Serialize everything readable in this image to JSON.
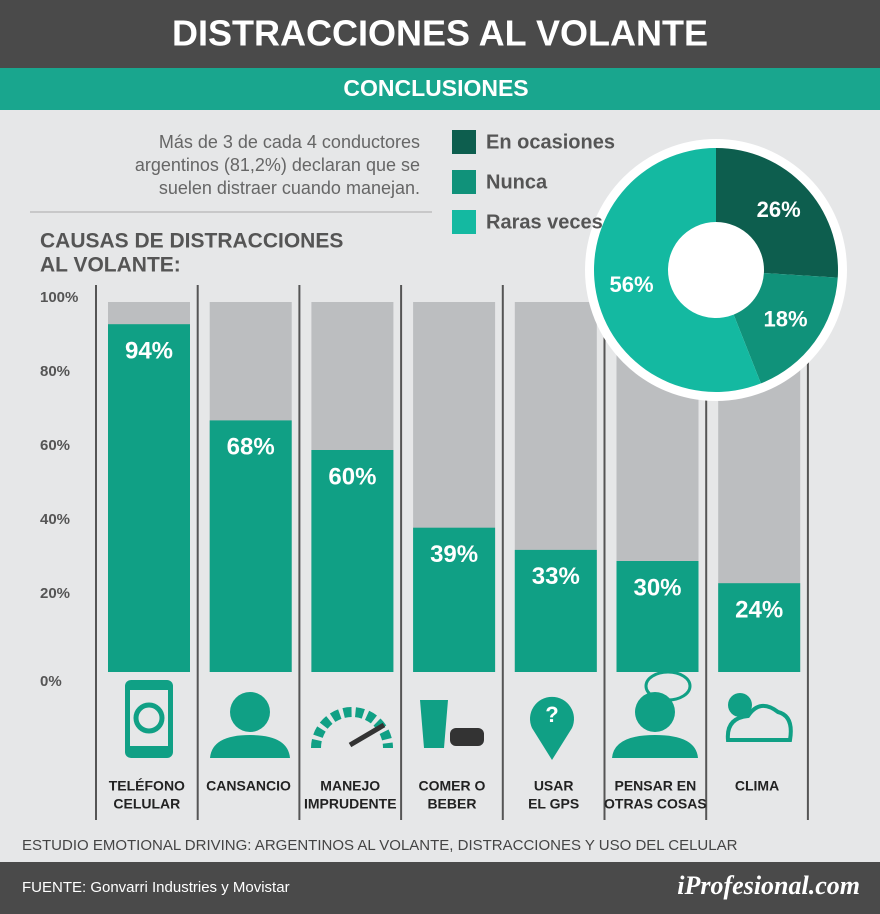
{
  "header": {
    "title": "DISTRACCIONES AL VOLANTE",
    "subtitle": "CONCLUSIONES",
    "intro": [
      "Más de 3 de cada 4 conductores",
      "argentinos (81,2%) declaran que se",
      "suelen distraer cuando manejan."
    ]
  },
  "chart_data": [
    {
      "type": "bar",
      "title": [
        "CAUSAS DE DISTRACCIONES",
        "AL VOLANTE:"
      ],
      "categories": [
        [
          "TELÉFONO",
          "CELULAR"
        ],
        [
          "CANSANCIO"
        ],
        [
          "MANEJO",
          "IMPRUDENTE"
        ],
        [
          "COMER O",
          "BEBER"
        ],
        [
          "USAR",
          "EL GPS"
        ],
        [
          "PENSAR EN",
          "OTRAS COSAS"
        ],
        [
          "CLIMA"
        ]
      ],
      "values": [
        94,
        68,
        60,
        39,
        33,
        30,
        24
      ],
      "value_labels": [
        "94%",
        "68%",
        "60%",
        "39%",
        "33%",
        "30%",
        "24%"
      ],
      "color": "#10a085",
      "background_color": "#bcbec0",
      "ylim": [
        0,
        100
      ],
      "yticks": [
        {
          "value": 0,
          "label": "0%"
        },
        {
          "value": 20,
          "label": "20%"
        },
        {
          "value": 40,
          "label": "40%"
        },
        {
          "value": 60,
          "label": "60%"
        },
        {
          "value": 80,
          "label": "80%"
        },
        {
          "value": 100,
          "label": "100%"
        }
      ]
    },
    {
      "type": "donut",
      "categories": [
        "En ocasiones",
        "Nunca",
        "Raras veces"
      ],
      "values": [
        26,
        18,
        56
      ],
      "value_labels": [
        "26%",
        "18%",
        "56%"
      ],
      "colors": [
        "#0d5e4e",
        "#10927a",
        "#14b9a1"
      ]
    }
  ],
  "footer": {
    "note": "ESTUDIO EMOTIONAL DRIVING: ARGENTINOS AL VOLANTE, DISTRACCIONES Y USO DEL CELULAR",
    "source": "FUENTE: Gonvarri Industries y Movistar",
    "brand": "iProfesional.com"
  }
}
